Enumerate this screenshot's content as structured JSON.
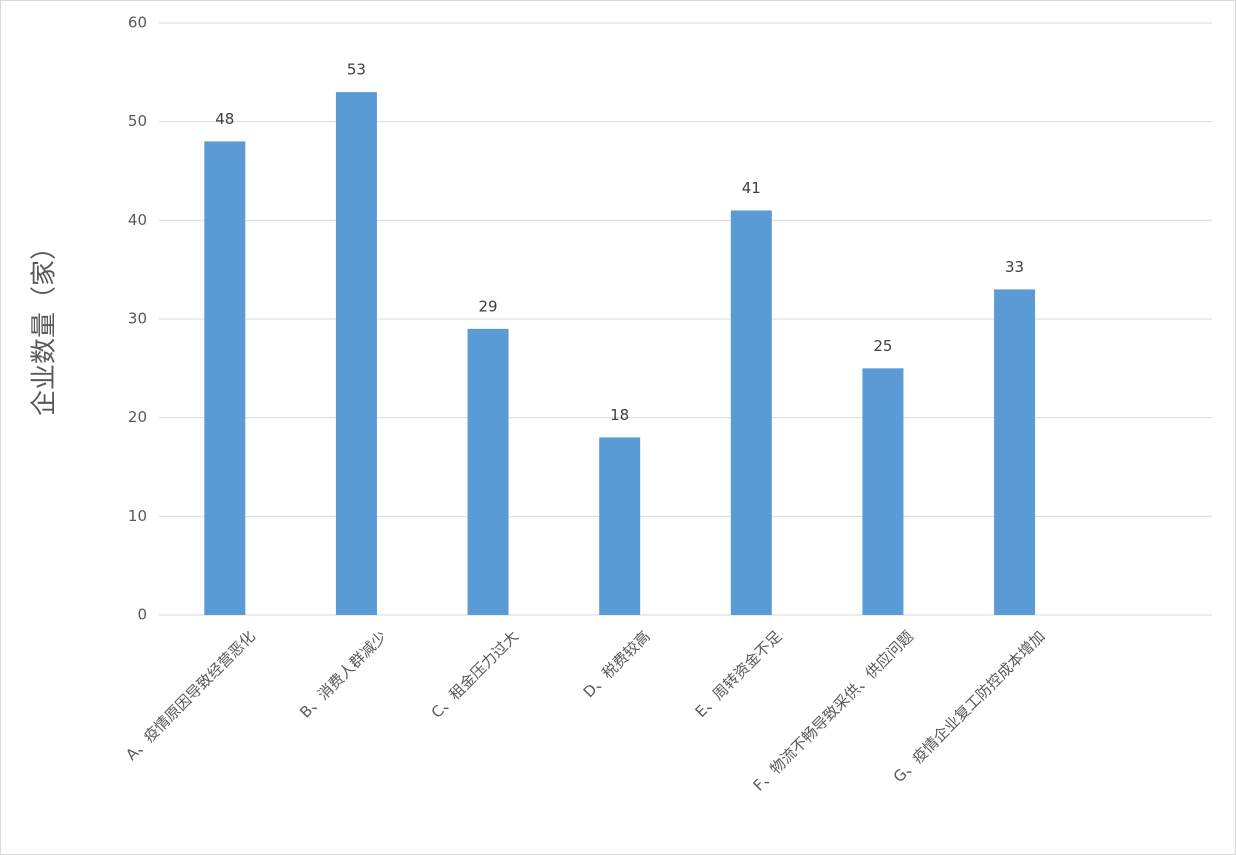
{
  "chart_data": {
    "type": "bar",
    "y_label": "企业数量（家）",
    "categories": [
      "A、疫情原因导致经营恶化",
      "B、消费人群减少",
      "C、租金压力过大",
      "D、税费较高",
      "E、周转资金不足",
      "F、物流不畅导致采供、供应问题",
      "G、疫情企业复工防控成本增加",
      null
    ],
    "values": [
      48,
      53,
      29,
      18,
      41,
      25,
      33,
      null
    ],
    "color": "#5b9bd5",
    "ylim": [
      0,
      60
    ],
    "yticks": [
      0,
      10,
      20,
      30,
      40,
      50,
      60
    ],
    "grid": true
  }
}
